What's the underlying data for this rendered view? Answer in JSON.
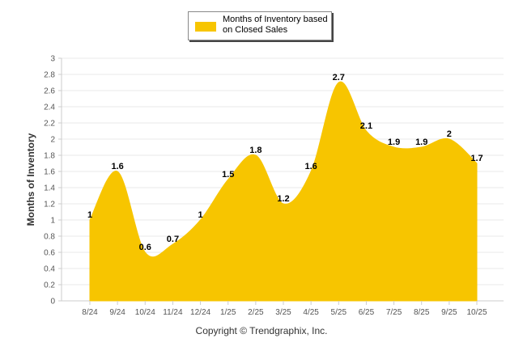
{
  "legend": {
    "label": "Months of Inventory based on Closed Sales"
  },
  "footer": {
    "copyright": "Copyright © Trendgraphix, Inc."
  },
  "colors": {
    "area_fill": "#F7C500",
    "grid": "#e8e8e8",
    "axis": "#cccccc"
  },
  "chart_data": {
    "type": "area",
    "ylabel": "Months of Inventory",
    "xlabel": "",
    "ylim": [
      0,
      3
    ],
    "ytick_step": 0.2,
    "yticks": [
      "0",
      "0.2",
      "0.4",
      "0.6",
      "0.8",
      "1",
      "1.2",
      "1.4",
      "1.6",
      "1.8",
      "2",
      "2.2",
      "2.4",
      "2.6",
      "2.8",
      "3"
    ],
    "grid": true,
    "legend_position": "top",
    "categories": [
      "8/24",
      "9/24",
      "10/24",
      "11/24",
      "12/24",
      "1/25",
      "2/25",
      "3/25",
      "4/25",
      "5/25",
      "6/25",
      "7/25",
      "8/25",
      "9/25",
      "10/25"
    ],
    "series": [
      {
        "name": "Months of Inventory based on Closed Sales",
        "values": [
          1,
          1.6,
          0.6,
          0.7,
          1,
          1.5,
          1.8,
          1.2,
          1.6,
          2.7,
          2.1,
          1.9,
          1.9,
          2,
          1.7
        ],
        "labels": [
          "1",
          "1.6",
          "0.6",
          "0.7",
          "1",
          "1.5",
          "1.8",
          "1.2",
          "1.6",
          "2.7",
          "2.1",
          "1.9",
          "1.9",
          "2",
          "1.7"
        ]
      }
    ]
  }
}
